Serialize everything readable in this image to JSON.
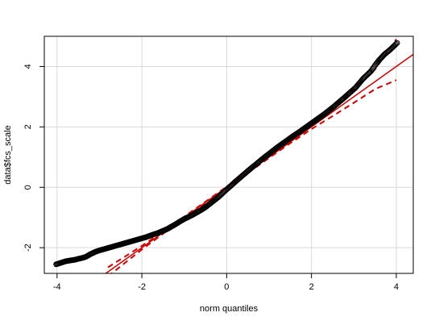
{
  "chart_data": {
    "type": "scatter",
    "subtype": "qq-plot",
    "title": "",
    "xlabel": "norm quantiles",
    "ylabel": "data$fcs_scale",
    "xlim": [
      -4.3,
      4.4
    ],
    "ylim": [
      -2.85,
      5.0
    ],
    "x_ticks": [
      -4,
      -2,
      0,
      2,
      4
    ],
    "y_ticks": [
      -2,
      0,
      2,
      4
    ],
    "x_tick_labels": [
      "-4",
      "-2",
      "0",
      "2",
      "4"
    ],
    "y_tick_labels": [
      "-2",
      "0",
      "2",
      "4"
    ],
    "grid": true,
    "colors": {
      "points": "#000000",
      "reference_line": "#cc0000",
      "envelope": "#cc0000",
      "grid": "#d9d9d9"
    },
    "reference_line": {
      "slope": 1.0,
      "intercept": 0.0
    },
    "envelope": {
      "x": [
        -2.8,
        -2.0,
        -1.5,
        -1.0,
        0.0,
        1.0,
        1.5,
        2.0,
        2.5,
        3.0,
        3.5,
        4.0
      ],
      "lower": [
        -2.95,
        -2.06,
        -1.54,
        -1.03,
        -0.02,
        0.97,
        1.46,
        1.93,
        2.36,
        2.8,
        3.25,
        3.55
      ],
      "upper": [
        -2.65,
        -1.94,
        -1.46,
        -0.97,
        0.02,
        1.03,
        1.54,
        2.07,
        2.64,
        3.25,
        3.9,
        4.9
      ]
    },
    "points": {
      "x": [
        -4.02,
        -3.8,
        -3.68,
        -3.58,
        -3.5,
        -3.44,
        -3.38,
        -3.32,
        -3.28,
        -3.22,
        -3.16,
        -3.1,
        -3.04,
        -2.98,
        -2.9,
        -2.8,
        -2.7,
        -2.6,
        -2.5,
        -2.4,
        -2.3,
        -2.2,
        -2.1,
        -2.0,
        -1.9,
        -1.8,
        -1.7,
        -1.6,
        -1.5,
        -1.4,
        -1.3,
        -1.2,
        -1.1,
        -1.0,
        -0.9,
        -0.8,
        -0.7,
        -0.6,
        -0.5,
        -0.4,
        -0.3,
        -0.2,
        -0.1,
        0.0,
        0.1,
        0.2,
        0.3,
        0.4,
        0.5,
        0.6,
        0.7,
        0.8,
        0.9,
        1.0,
        1.1,
        1.2,
        1.3,
        1.4,
        1.5,
        1.6,
        1.7,
        1.8,
        1.9,
        2.0,
        2.1,
        2.2,
        2.3,
        2.4,
        2.5,
        2.6,
        2.7,
        2.8,
        2.88,
        2.96,
        3.04,
        3.1,
        3.16,
        3.22,
        3.28,
        3.34,
        3.4,
        3.46,
        3.52,
        3.6,
        3.72,
        3.85,
        4.02
      ],
      "y": [
        -2.55,
        -2.45,
        -2.42,
        -2.4,
        -2.37,
        -2.35,
        -2.33,
        -2.3,
        -2.27,
        -2.22,
        -2.18,
        -2.14,
        -2.11,
        -2.08,
        -2.05,
        -2.01,
        -1.97,
        -1.93,
        -1.89,
        -1.85,
        -1.81,
        -1.77,
        -1.73,
        -1.69,
        -1.65,
        -1.6,
        -1.55,
        -1.5,
        -1.44,
        -1.38,
        -1.3,
        -1.22,
        -1.13,
        -1.05,
        -0.98,
        -0.91,
        -0.83,
        -0.75,
        -0.66,
        -0.55,
        -0.44,
        -0.33,
        -0.2,
        -0.07,
        0.05,
        0.18,
        0.3,
        0.42,
        0.54,
        0.66,
        0.77,
        0.89,
        1.0,
        1.11,
        1.22,
        1.33,
        1.43,
        1.53,
        1.63,
        1.73,
        1.82,
        1.92,
        2.02,
        2.12,
        2.22,
        2.32,
        2.42,
        2.53,
        2.64,
        2.76,
        2.88,
        3.0,
        3.1,
        3.2,
        3.3,
        3.4,
        3.5,
        3.6,
        3.68,
        3.76,
        3.84,
        3.96,
        4.08,
        4.22,
        4.4,
        4.55,
        4.78
      ]
    }
  }
}
